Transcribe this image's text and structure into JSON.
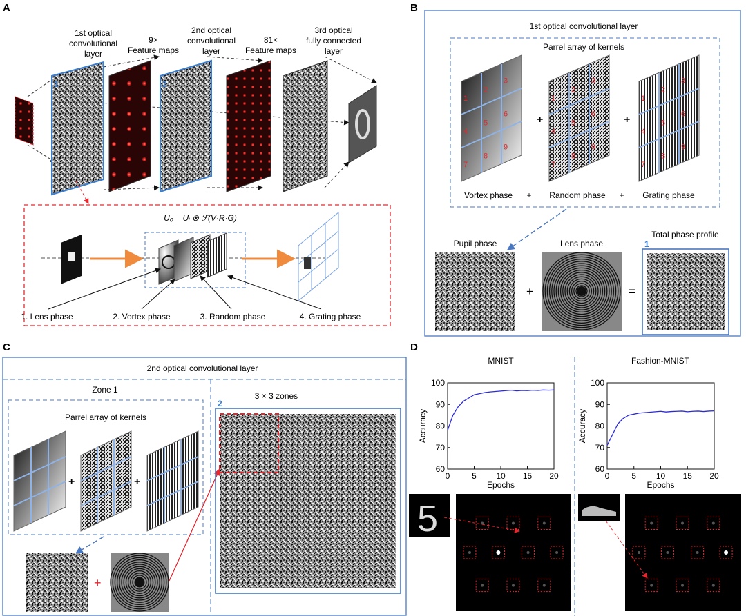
{
  "panels": {
    "a": "A",
    "b": "B",
    "c": "C",
    "d": "D"
  },
  "panel_a": {
    "headers": [
      {
        "line1": "1st optical",
        "line2": "convolutional",
        "line3": "layer"
      },
      {
        "line1": "9×",
        "line2": "Feature maps"
      },
      {
        "line1": "2nd optical",
        "line2": "convolutional",
        "line3": "layer"
      },
      {
        "line1": "81×",
        "line2": "Feature maps"
      },
      {
        "line1": "3rd optical",
        "line2": "fully connected",
        "line3": "layer"
      }
    ],
    "layer_numbers": [
      "1",
      "2"
    ],
    "equation": "U₀ = Uᵢ ⊗ ℱ(V·R·G)",
    "inset_labels": [
      "1. Lens phase",
      "2. Vortex phase",
      "3. Random phase",
      "4. Grating phase"
    ]
  },
  "panel_b": {
    "title": "1st optical convolutional layer",
    "array_title": "Parrel array of kernels",
    "kernel_numbers": [
      "1",
      "2",
      "3",
      "4",
      "5",
      "6",
      "7",
      "8",
      "9"
    ],
    "plus": "+",
    "small_plus": "+",
    "equals": "=",
    "kernel_labels": [
      "Vortex phase",
      "Random phase",
      "Grating phase"
    ],
    "bottom_titles": [
      "Pupil phase",
      "Lens phase",
      "Total phase profile"
    ],
    "total_number": "1"
  },
  "panel_c": {
    "title": "2nd optical convolutional layer",
    "zone_title": "Zone 1",
    "zones_title": "3 × 3 zones",
    "array_title": "Parrel array of kernels",
    "plus": "+",
    "zones_number": "2"
  },
  "panel_d": {
    "digit": "5",
    "colors": {
      "line": "#2b2bd6",
      "detector_box": "#e8262d"
    },
    "detector_hits": [
      4,
      6
    ]
  },
  "chart_data": [
    {
      "type": "line",
      "title": "MNIST",
      "xlabel": "Epochs",
      "ylabel": "Accuracy",
      "xlim": [
        0,
        20
      ],
      "ylim": [
        60,
        100
      ],
      "xticks": [
        0,
        5,
        10,
        15,
        20
      ],
      "yticks": [
        60,
        70,
        80,
        90,
        100
      ],
      "x": [
        0,
        1,
        2,
        3,
        4,
        5,
        6,
        7,
        8,
        9,
        10,
        11,
        12,
        13,
        14,
        15,
        16,
        17,
        18,
        19,
        20
      ],
      "series": [
        {
          "values": [
            78,
            85,
            89,
            91.5,
            93,
            94.5,
            95,
            95.5,
            95.8,
            96,
            96.2,
            96.4,
            96.6,
            96.3,
            96.5,
            96.4,
            96.6,
            96.5,
            96.7,
            96.6,
            96.7
          ]
        }
      ]
    },
    {
      "type": "line",
      "title": "Fashion-MNIST",
      "xlabel": "Epochs",
      "ylabel": "Accuracy",
      "xlim": [
        0,
        20
      ],
      "ylim": [
        60,
        100
      ],
      "xticks": [
        0,
        5,
        10,
        15,
        20
      ],
      "yticks": [
        60,
        70,
        80,
        90,
        100
      ],
      "x": [
        0,
        1,
        2,
        3,
        4,
        5,
        6,
        7,
        8,
        9,
        10,
        11,
        12,
        13,
        14,
        15,
        16,
        17,
        18,
        19,
        20
      ],
      "series": [
        {
          "values": [
            71,
            76,
            81,
            83.5,
            85,
            85.5,
            86,
            86.2,
            86.4,
            86.6,
            86.8,
            86.5,
            86.7,
            86.8,
            86.9,
            86.6,
            86.8,
            86.9,
            86.7,
            86.9,
            87
          ]
        }
      ]
    }
  ]
}
